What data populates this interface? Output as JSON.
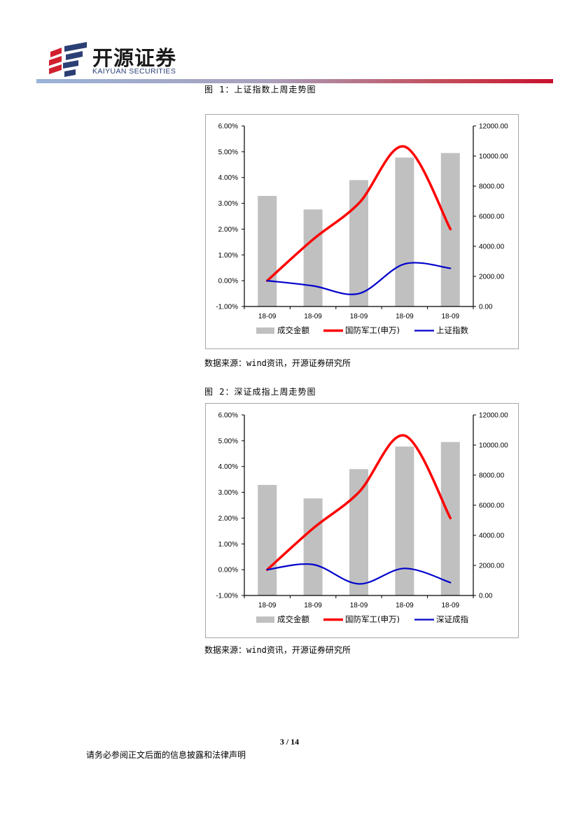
{
  "header": {
    "logo_cn": "开源证券",
    "logo_en": "KAIYUAN SECURITIES",
    "brand_colors": {
      "red": "#c8102e",
      "blue": "#2b3f75",
      "rule_start": "#9ab3d8"
    }
  },
  "figures": [
    {
      "title": "图 1：上证指数上周走势图",
      "source": "数据来源：wind资讯，开源证券研究所"
    },
    {
      "title": "图 2：深证成指上周走势图",
      "source": "数据来源：wind资讯，开源证券研究所"
    }
  ],
  "chart_data": [
    {
      "type": "bar",
      "categories": [
        "18-09",
        "18-09",
        "18-09",
        "18-09",
        "18-09"
      ],
      "y_left": {
        "min": -0.01,
        "max": 0.06,
        "ticks": [
          "-1.00%",
          "0.00%",
          "1.00%",
          "2.00%",
          "3.00%",
          "4.00%",
          "5.00%",
          "6.00%"
        ]
      },
      "y_right": {
        "min": 0,
        "max": 12000,
        "ticks": [
          "0.00",
          "2000.00",
          "4000.00",
          "6000.00",
          "8000.00",
          "10000.00",
          "12000.00"
        ]
      },
      "series": [
        {
          "name": "成交金额",
          "kind": "bar",
          "axis": "right",
          "color": "#c0c0c0",
          "values": [
            7350,
            6450,
            8400,
            9900,
            10200
          ]
        },
        {
          "name": "国防军工(申万)",
          "kind": "line",
          "axis": "left",
          "color": "#ff0000",
          "values": [
            0.0,
            0.016,
            0.03,
            0.052,
            0.02
          ]
        },
        {
          "name": "上证指数",
          "kind": "line",
          "axis": "left",
          "color": "#0000cc",
          "values": [
            0.0,
            -0.002,
            -0.005,
            0.0065,
            0.0048
          ]
        }
      ],
      "legend": "bottom",
      "grid": false
    },
    {
      "type": "bar",
      "categories": [
        "18-09",
        "18-09",
        "18-09",
        "18-09",
        "18-09"
      ],
      "y_left": {
        "min": -0.01,
        "max": 0.06,
        "ticks": [
          "-1.00%",
          "0.00%",
          "1.00%",
          "2.00%",
          "3.00%",
          "4.00%",
          "5.00%",
          "6.00%"
        ]
      },
      "y_right": {
        "min": 0,
        "max": 12000,
        "ticks": [
          "0.00",
          "2000.00",
          "4000.00",
          "6000.00",
          "8000.00",
          "10000.00",
          "12000.00"
        ]
      },
      "series": [
        {
          "name": "成交金额",
          "kind": "bar",
          "axis": "right",
          "color": "#c0c0c0",
          "values": [
            7350,
            6450,
            8400,
            9900,
            10200
          ]
        },
        {
          "name": "国防军工(申万)",
          "kind": "line",
          "axis": "left",
          "color": "#ff0000",
          "values": [
            0.0,
            0.016,
            0.03,
            0.052,
            0.02
          ]
        },
        {
          "name": "深证成指",
          "kind": "line",
          "axis": "left",
          "color": "#0000cc",
          "values": [
            0.0,
            0.002,
            -0.0055,
            0.0005,
            -0.005
          ]
        }
      ],
      "legend": "bottom",
      "grid": false
    }
  ],
  "footer": {
    "page_number": "3 / 14",
    "disclaimer": "请务必参阅正文后面的信息披露和法律声明"
  }
}
